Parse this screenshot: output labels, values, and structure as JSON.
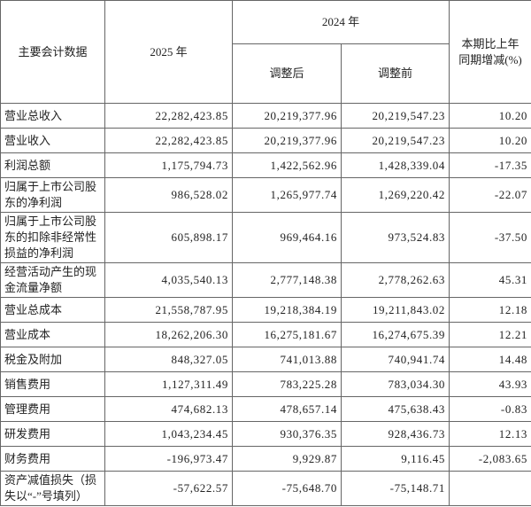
{
  "table": {
    "header": {
      "col0": "主要会计数据",
      "col1": "2025 年",
      "group": "2024 年",
      "sub1": "调整后",
      "sub2": "调整前",
      "col4": [
        "本期比上年",
        "同期增减(%)"
      ]
    },
    "rows": [
      [
        "营业总收入",
        "22,282,423.85",
        "20,219,377.96",
        "20,219,547.23",
        "10.20"
      ],
      [
        "营业收入",
        "22,282,423.85",
        "20,219,377.96",
        "20,219,547.23",
        "10.20"
      ],
      [
        "利润总额",
        "1,175,794.73",
        "1,422,562.96",
        "1,428,339.04",
        "-17.35"
      ],
      [
        "归属于上市公司股东的净利润",
        "986,528.02",
        "1,265,977.74",
        "1,269,220.42",
        "-22.07"
      ],
      [
        "归属于上市公司股东的扣除非经常性损益的净利润",
        "605,898.17",
        "969,464.16",
        "973,524.83",
        "-37.50"
      ],
      [
        "经营活动产生的现金流量净额",
        "4,035,540.13",
        "2,777,148.38",
        "2,778,262.63",
        "45.31"
      ],
      [
        "营业总成本",
        "21,558,787.95",
        "19,218,384.19",
        "19,211,843.02",
        "12.18"
      ],
      [
        "营业成本",
        "18,262,206.30",
        "16,275,181.67",
        "16,274,675.39",
        "12.21"
      ],
      [
        "税金及附加",
        "848,327.05",
        "741,013.88",
        "740,941.74",
        "14.48"
      ],
      [
        "销售费用",
        "1,127,311.49",
        "783,225.28",
        "783,034.30",
        "43.93"
      ],
      [
        "管理费用",
        "474,682.13",
        "478,657.14",
        "475,638.43",
        "-0.83"
      ],
      [
        "研发费用",
        "1,043,234.45",
        "930,376.35",
        "928,436.73",
        "12.13"
      ],
      [
        "财务费用",
        "-196,973.47",
        "9,929.87",
        "9,116.45",
        "-2,083.65"
      ],
      [
        "资产减值损失（损失以“-”号填列）",
        "-57,622.57",
        "-75,648.70",
        "-75,148.71"
      ]
    ]
  }
}
